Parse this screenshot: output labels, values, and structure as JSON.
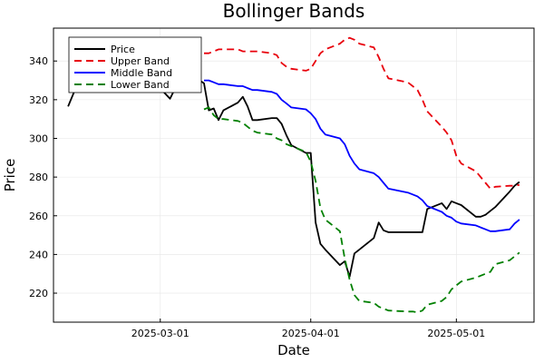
{
  "chart_data": {
    "type": "line",
    "title": "Bollinger Bands",
    "xlabel": "Date",
    "ylabel": "Price",
    "xlim": [
      "2025-02-07",
      "2025-05-17"
    ],
    "ylim": [
      205,
      357
    ],
    "x_ticks": [
      "2025-03-01",
      "2025-04-01",
      "2025-05-01"
    ],
    "y_ticks": [
      220,
      240,
      260,
      280,
      300,
      320,
      340
    ],
    "grid": true,
    "legend_position": "top-left",
    "series": [
      {
        "name": "Price",
        "color": "#000000",
        "dash": "solid",
        "x": [
          "2025-02-10",
          "2025-02-11",
          "2025-02-12",
          "2025-02-13",
          "2025-02-14",
          "2025-02-18",
          "2025-02-19",
          "2025-02-20",
          "2025-02-21",
          "2025-02-24",
          "2025-02-25",
          "2025-02-26",
          "2025-02-27",
          "2025-02-28",
          "2025-03-03",
          "2025-03-04",
          "2025-03-05",
          "2025-03-06",
          "2025-03-07",
          "2025-03-10",
          "2025-03-11",
          "2025-03-12",
          "2025-03-13",
          "2025-03-14",
          "2025-03-17",
          "2025-03-18",
          "2025-03-19",
          "2025-03-20",
          "2025-03-21",
          "2025-03-24",
          "2025-03-25",
          "2025-03-26",
          "2025-03-27",
          "2025-03-28",
          "2025-03-31",
          "2025-04-01",
          "2025-04-02",
          "2025-04-03",
          "2025-04-04",
          "2025-04-07",
          "2025-04-08",
          "2025-04-09",
          "2025-04-10",
          "2025-04-11",
          "2025-04-14",
          "2025-04-15",
          "2025-04-16",
          "2025-04-17",
          "2025-04-21",
          "2025-04-22",
          "2025-04-23",
          "2025-04-24",
          "2025-04-25",
          "2025-04-28",
          "2025-04-29",
          "2025-04-30",
          "2025-05-01",
          "2025-05-02",
          "2025-05-05",
          "2025-05-06",
          "2025-05-07",
          "2025-05-08",
          "2025-05-09",
          "2025-05-12",
          "2025-05-13",
          "2025-05-14"
        ],
        "y": [
          316.5,
          322.5,
          328.5,
          333.5,
          334.5,
          334.5,
          335.5,
          332.5,
          331.5,
          330.5,
          331.5,
          331.5,
          331.5,
          328.5,
          320.5,
          325.5,
          329.5,
          335.5,
          333.5,
          328.5,
          314.5,
          315.5,
          309.5,
          314.5,
          318.5,
          321.5,
          316.5,
          309.5,
          309.5,
          310.5,
          310.5,
          307.5,
          301.5,
          296.5,
          292.5,
          292.5,
          256.5,
          245.5,
          242.5,
          234.5,
          236.5,
          228.5,
          240.5,
          242.5,
          248.5,
          256.5,
          252.5,
          251.5,
          251.5,
          251.5,
          251.5,
          251.5,
          263.5,
          266.5,
          263.5,
          267.5,
          266.5,
          265.5,
          259.5,
          259.5,
          260.5,
          262.5,
          264.5,
          272.5,
          275.5,
          277.5
        ]
      },
      {
        "name": "Upper Band",
        "color": "#e8000b",
        "dash": "dashed",
        "x": [
          "2025-03-10",
          "2025-03-11",
          "2025-03-12",
          "2025-03-13",
          "2025-03-14",
          "2025-03-17",
          "2025-03-18",
          "2025-03-19",
          "2025-03-20",
          "2025-03-21",
          "2025-03-24",
          "2025-03-25",
          "2025-03-26",
          "2025-03-27",
          "2025-03-28",
          "2025-03-31",
          "2025-04-01",
          "2025-04-02",
          "2025-04-03",
          "2025-04-04",
          "2025-04-07",
          "2025-04-08",
          "2025-04-09",
          "2025-04-10",
          "2025-04-11",
          "2025-04-14",
          "2025-04-15",
          "2025-04-16",
          "2025-04-17",
          "2025-04-21",
          "2025-04-22",
          "2025-04-23",
          "2025-04-24",
          "2025-04-25",
          "2025-04-28",
          "2025-04-29",
          "2025-04-30",
          "2025-05-01",
          "2025-05-02",
          "2025-05-05",
          "2025-05-06",
          "2025-05-07",
          "2025-05-08",
          "2025-05-09",
          "2025-05-12",
          "2025-05-13",
          "2025-05-14"
        ],
        "y": [
          344,
          344,
          345,
          346,
          346,
          346,
          345,
          345,
          345,
          345,
          344,
          343,
          339,
          337,
          336,
          335,
          336,
          340,
          344,
          346,
          349,
          351,
          352,
          351,
          349,
          347,
          342,
          336,
          331,
          329,
          327,
          325,
          320,
          314,
          306,
          303,
          299,
          291,
          287,
          283,
          280,
          277,
          274,
          275,
          275.5,
          275.5,
          276
        ]
      },
      {
        "name": "Middle Band",
        "color": "#0000ff",
        "dash": "solid",
        "x": [
          "2025-03-10",
          "2025-03-11",
          "2025-03-12",
          "2025-03-13",
          "2025-03-14",
          "2025-03-17",
          "2025-03-18",
          "2025-03-19",
          "2025-03-20",
          "2025-03-21",
          "2025-03-24",
          "2025-03-25",
          "2025-03-26",
          "2025-03-27",
          "2025-03-28",
          "2025-03-31",
          "2025-04-01",
          "2025-04-02",
          "2025-04-03",
          "2025-04-04",
          "2025-04-07",
          "2025-04-08",
          "2025-04-09",
          "2025-04-10",
          "2025-04-11",
          "2025-04-14",
          "2025-04-15",
          "2025-04-16",
          "2025-04-17",
          "2025-04-21",
          "2025-04-22",
          "2025-04-23",
          "2025-04-24",
          "2025-04-25",
          "2025-04-28",
          "2025-04-29",
          "2025-04-30",
          "2025-05-01",
          "2025-05-02",
          "2025-05-05",
          "2025-05-06",
          "2025-05-07",
          "2025-05-08",
          "2025-05-09",
          "2025-05-12",
          "2025-05-13",
          "2025-05-14"
        ],
        "y": [
          330,
          330,
          329,
          328,
          328,
          327,
          327,
          326,
          325,
          325,
          324,
          323,
          320,
          318,
          316,
          315,
          313,
          310,
          305,
          302,
          300,
          297,
          291,
          287,
          284,
          282,
          280,
          277,
          274,
          272,
          271,
          270,
          268,
          265,
          262,
          260,
          259,
          257,
          256,
          255,
          254,
          253,
          252,
          252,
          253,
          256,
          258
        ]
      },
      {
        "name": "Lower Band",
        "color": "#008000",
        "dash": "dashed",
        "x": [
          "2025-03-10",
          "2025-03-11",
          "2025-03-12",
          "2025-03-13",
          "2025-03-14",
          "2025-03-17",
          "2025-03-18",
          "2025-03-19",
          "2025-03-20",
          "2025-03-21",
          "2025-03-24",
          "2025-03-25",
          "2025-03-26",
          "2025-03-27",
          "2025-03-28",
          "2025-03-31",
          "2025-04-01",
          "2025-04-02",
          "2025-04-03",
          "2025-04-04",
          "2025-04-07",
          "2025-04-08",
          "2025-04-09",
          "2025-04-10",
          "2025-04-11",
          "2025-04-14",
          "2025-04-15",
          "2025-04-16",
          "2025-04-17",
          "2025-04-21",
          "2025-04-22",
          "2025-04-23",
          "2025-04-24",
          "2025-04-25",
          "2025-04-28",
          "2025-04-29",
          "2025-04-30",
          "2025-05-01",
          "2025-05-02",
          "2025-05-05",
          "2025-05-06",
          "2025-05-07",
          "2025-05-08",
          "2025-05-09",
          "2025-05-12",
          "2025-05-13",
          "2025-05-14"
        ],
        "y": [
          315,
          316,
          312,
          310,
          310,
          309,
          308,
          306,
          304,
          303,
          302,
          300,
          299,
          297,
          296,
          293,
          288,
          278,
          264,
          258,
          252,
          238,
          227,
          219,
          216,
          215,
          213,
          212,
          211,
          210.5,
          210.5,
          210,
          211,
          214,
          216,
          218,
          222,
          224,
          226,
          228,
          229,
          230,
          231,
          235,
          237,
          239,
          241
        ]
      }
    ]
  }
}
